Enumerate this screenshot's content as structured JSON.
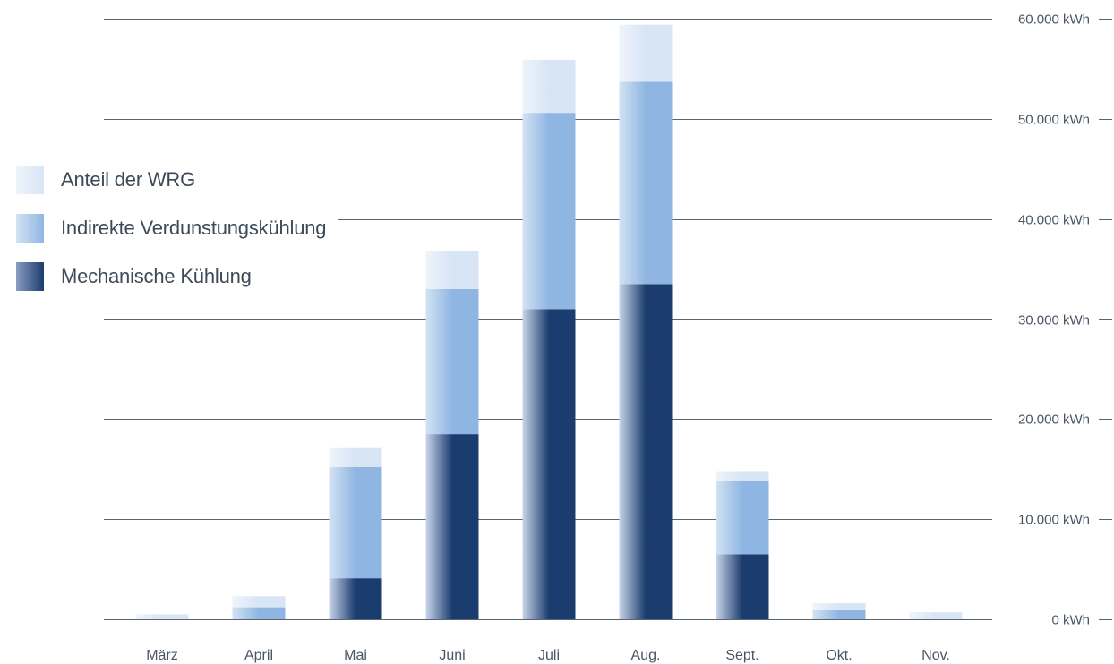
{
  "chart_data": {
    "type": "bar",
    "stacked": true,
    "categories": [
      "März",
      "April",
      "Mai",
      "Juni",
      "Juli",
      "Aug.",
      "Sept.",
      "Okt.",
      "Nov."
    ],
    "series": [
      {
        "name": "Mechanische Kühlung",
        "values": [
          0,
          0,
          4100,
          18500,
          31000,
          33500,
          6500,
          0,
          0
        ],
        "color": "#1b3c6e"
      },
      {
        "name": "Indirekte Verdunstungskühlung",
        "values": [
          0,
          1200,
          11100,
          14500,
          19600,
          20200,
          7300,
          900,
          0
        ],
        "color": "#8fb6e2"
      },
      {
        "name": "Anteil der WRG",
        "values": [
          500,
          1100,
          1900,
          3800,
          5300,
          5700,
          1000,
          700,
          700
        ],
        "color": "#d8e5f5"
      }
    ],
    "y_ticks": [
      "0 kWh",
      "10.000 kWh",
      "20.000 kWh",
      "30.000 kWh",
      "40.000 kWh",
      "50.000 kWh",
      "60.000 kWh"
    ],
    "ylim": [
      0,
      60000
    ],
    "grid": true,
    "legend_position": "left",
    "xlabel": "",
    "ylabel": "",
    "title": ""
  },
  "legend": {
    "items": [
      {
        "label": "Anteil der WRG",
        "color": "#d8e5f5"
      },
      {
        "label": "Indirekte Verdunstungskühlung",
        "color": "#8fb6e2"
      },
      {
        "label": "Mechanische Kühlung",
        "color": "#1b3c6e"
      }
    ]
  }
}
